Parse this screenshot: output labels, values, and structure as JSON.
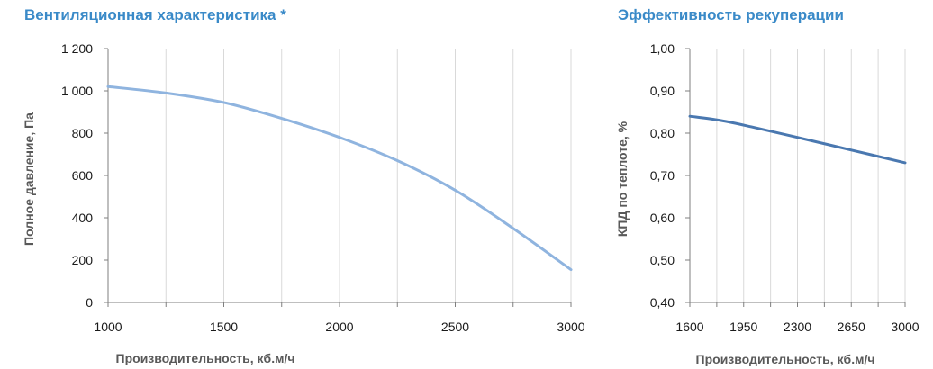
{
  "chart_data": [
    {
      "type": "line",
      "title": "Вентиляционная характеристика *",
      "xlabel": "Производительность, кб.м/ч",
      "ylabel": "Полное  давление, Па",
      "xlim": [
        1000,
        3000
      ],
      "ylim": [
        0,
        1200
      ],
      "x_ticks": [
        1000,
        1500,
        2000,
        2500,
        3000
      ],
      "x_tick_labels": [
        "1000",
        "1500",
        "2000",
        "2500",
        "3000"
      ],
      "y_ticks": [
        0,
        200,
        400,
        600,
        800,
        1000,
        1200
      ],
      "y_tick_labels": [
        "0",
        "200",
        "400",
        "600",
        "800",
        "1 000",
        "1 200"
      ],
      "x_grid": [
        1000,
        1250,
        1500,
        1750,
        2000,
        2250,
        2500,
        2750,
        3000
      ],
      "grid": true,
      "color": "#8fb4df",
      "series": [
        {
          "x": [
            1000,
            1250,
            1500,
            1750,
            2000,
            2250,
            2500,
            2750,
            3000
          ],
          "values": [
            1020,
            990,
            945,
            870,
            780,
            670,
            530,
            350,
            155
          ]
        }
      ]
    },
    {
      "type": "line",
      "title": "Эффективность рекуперации",
      "xlabel": "Производительность, кб.м/ч",
      "ylabel": "КПД по теплоте, %",
      "xlim": [
        1600,
        3000
      ],
      "ylim": [
        0.4,
        1.0
      ],
      "x_ticks": [
        1600,
        1950,
        2300,
        2650,
        3000
      ],
      "x_tick_labels": [
        "1600",
        "1950",
        "2300",
        "2650",
        "3000"
      ],
      "y_ticks": [
        0.4,
        0.5,
        0.6,
        0.7,
        0.8,
        0.9,
        1.0
      ],
      "y_tick_labels": [
        "0,40",
        "0,50",
        "0,60",
        "0,70",
        "0,80",
        "0,90",
        "1,00"
      ],
      "x_grid": [
        1600,
        1775,
        1950,
        2125,
        2300,
        2475,
        2650,
        2825,
        3000
      ],
      "grid": true,
      "color": "#4a78b0",
      "series": [
        {
          "x": [
            1600,
            1800,
            2000,
            2300,
            2650,
            3000
          ],
          "values": [
            0.84,
            0.83,
            0.815,
            0.79,
            0.76,
            0.73
          ]
        }
      ]
    }
  ]
}
